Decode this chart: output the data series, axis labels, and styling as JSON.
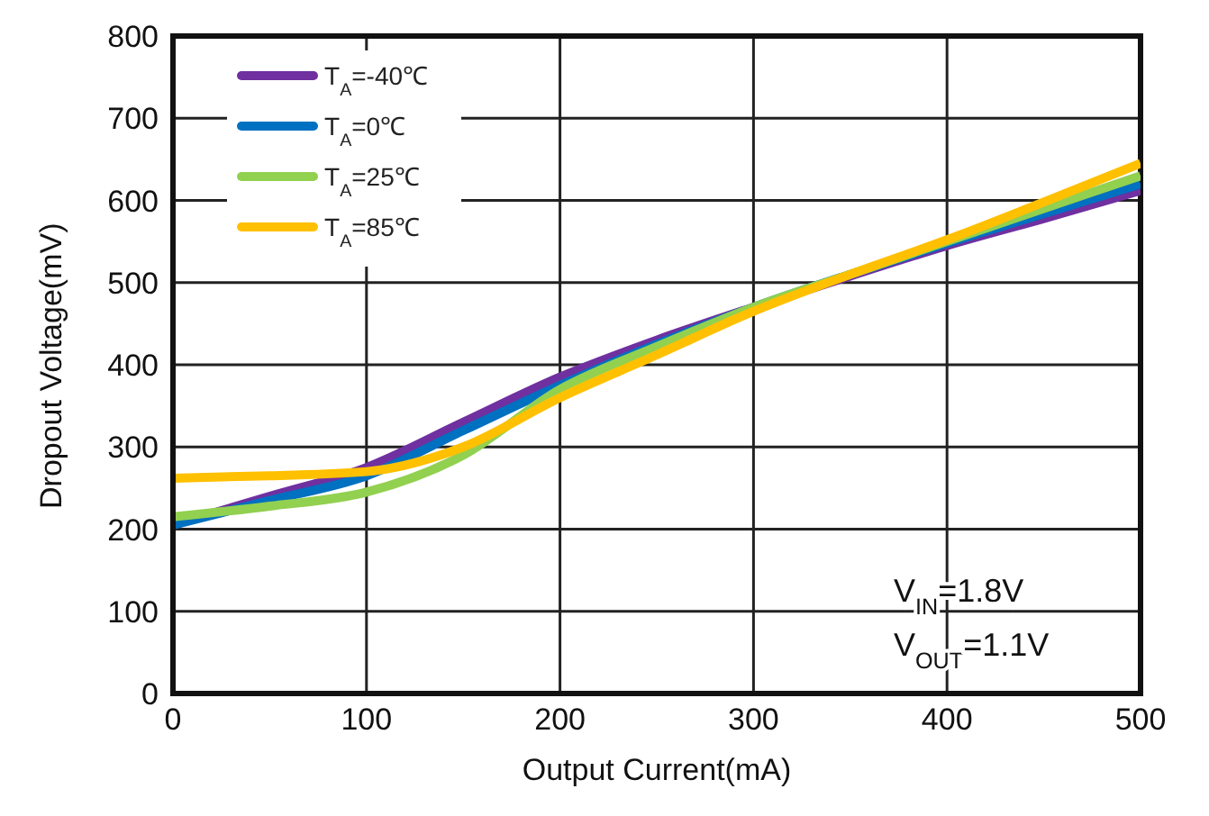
{
  "chart_data": {
    "type": "line",
    "xlabel": "Output Current(mA)",
    "ylabel": "Dropout Voltage(mV)",
    "x": [
      0,
      50,
      100,
      150,
      200,
      250,
      300,
      350,
      400,
      450,
      500
    ],
    "series": [
      {
        "name": "T$_{A}$=-40℃",
        "color": "#7030a0",
        "values": [
          205,
          240,
          275,
          330,
          385,
          430,
          470,
          508,
          545,
          578,
          612
        ]
      },
      {
        "name": "T$_{A}$=0℃",
        "color": "#0070c0",
        "values": [
          205,
          235,
          265,
          320,
          375,
          425,
          470,
          510,
          548,
          584,
          620
        ]
      },
      {
        "name": "T$_{A}$=25℃",
        "color": "#92d050",
        "values": [
          215,
          228,
          245,
          290,
          370,
          422,
          470,
          510,
          550,
          590,
          630
        ]
      },
      {
        "name": "T$_{A}$=85℃",
        "color": "#ffc000",
        "values": [
          262,
          265,
          270,
          300,
          360,
          412,
          465,
          510,
          552,
          598,
          645
        ]
      }
    ],
    "xlim": [
      0,
      500
    ],
    "xticks": [
      0,
      100,
      200,
      300,
      400,
      500
    ],
    "ylim": [
      0,
      800
    ],
    "yticks": [
      0,
      100,
      200,
      300,
      400,
      500,
      600,
      700,
      800
    ],
    "grid": true,
    "legend": "top left",
    "line_style": "solid",
    "marker": "none",
    "annotations": [
      "V$_{IN}$=1.8V",
      "V$_{OUT}$=1.1V"
    ]
  }
}
